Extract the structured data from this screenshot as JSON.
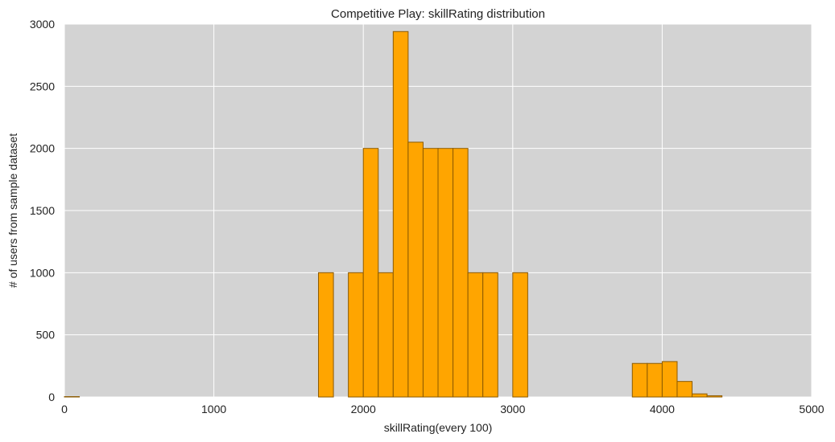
{
  "chart_data": {
    "type": "bar",
    "title": "Competitive Play:  skillRating distribution",
    "xlabel": "skillRating(every 100)",
    "ylabel": "# of users from sample dataset",
    "xlim": [
      0,
      5000
    ],
    "ylim": [
      0,
      3000
    ],
    "x_ticks": [
      "0",
      "1000",
      "2000",
      "3000",
      "4000",
      "5000"
    ],
    "y_ticks": [
      "0",
      "500",
      "1000",
      "1500",
      "2000",
      "2500",
      "3000"
    ],
    "grid": true,
    "bar_color": "#FFA500",
    "bar_edge_color": "#8B5A00",
    "background_color": "#D3D3D3",
    "bins": [
      {
        "x0": 0,
        "x1": 100,
        "count": 3
      },
      {
        "x0": 1700,
        "x1": 1800,
        "count": 1000
      },
      {
        "x0": 1900,
        "x1": 2000,
        "count": 1000
      },
      {
        "x0": 2000,
        "x1": 2100,
        "count": 2000
      },
      {
        "x0": 2100,
        "x1": 2200,
        "count": 1000
      },
      {
        "x0": 2200,
        "x1": 2300,
        "count": 2940
      },
      {
        "x0": 2300,
        "x1": 2400,
        "count": 2050
      },
      {
        "x0": 2400,
        "x1": 2500,
        "count": 2000
      },
      {
        "x0": 2500,
        "x1": 2600,
        "count": 2000
      },
      {
        "x0": 2600,
        "x1": 2700,
        "count": 2000
      },
      {
        "x0": 2700,
        "x1": 2800,
        "count": 1000
      },
      {
        "x0": 2800,
        "x1": 2900,
        "count": 1000
      },
      {
        "x0": 3000,
        "x1": 3100,
        "count": 1000
      },
      {
        "x0": 3800,
        "x1": 3900,
        "count": 270
      },
      {
        "x0": 3900,
        "x1": 4000,
        "count": 270
      },
      {
        "x0": 4000,
        "x1": 4100,
        "count": 285
      },
      {
        "x0": 4100,
        "x1": 4200,
        "count": 125
      },
      {
        "x0": 4200,
        "x1": 4300,
        "count": 25
      },
      {
        "x0": 4300,
        "x1": 4400,
        "count": 10
      }
    ]
  }
}
